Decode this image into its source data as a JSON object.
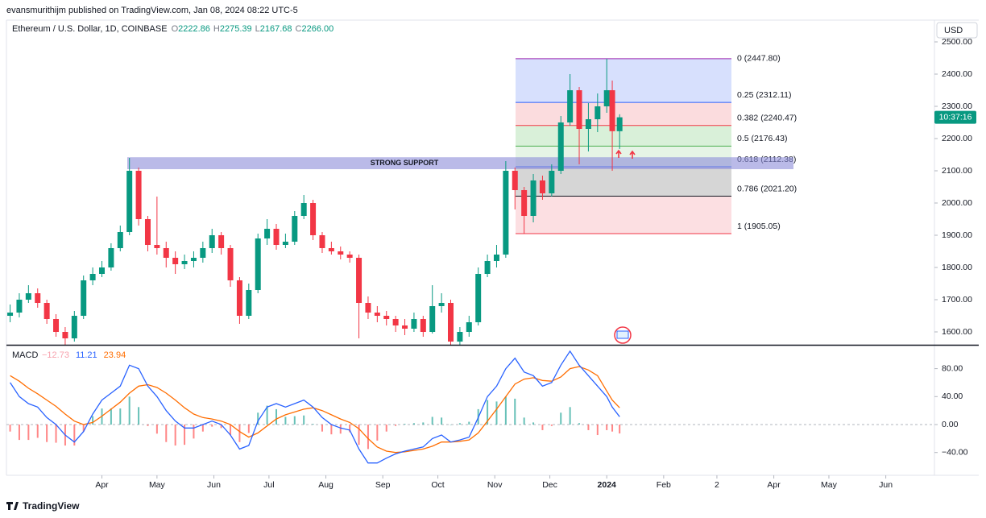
{
  "header": {
    "publisher": "evansmurithijm published on TradingView.com, Jan 08, 2024 08:22 UTC-5",
    "symbol": "Ethereum / U.S. Dollar, 1D, COINBASE",
    "ohlc": [
      {
        "key": "O",
        "value": "2222.86"
      },
      {
        "key": "H",
        "value": "2275.39"
      },
      {
        "key": "L",
        "value": "2167.68"
      },
      {
        "key": "C",
        "value": "2266.00"
      }
    ],
    "currency": "USD",
    "countdown": "10:37:16",
    "footer": "TradingView"
  },
  "chart_data": [
    {
      "type": "candlestick",
      "up_color": "#089981",
      "down_color": "#f23645",
      "xlim": [
        -52,
        453.5
      ],
      "ylim": [
        1560,
        2567.5
      ],
      "xticks": [
        {
          "value": 0,
          "label": "Apr"
        },
        {
          "value": 30,
          "label": "May"
        },
        {
          "value": 61,
          "label": "Jun"
        },
        {
          "value": 91,
          "label": "Jul"
        },
        {
          "value": 122,
          "label": "Aug"
        },
        {
          "value": 153,
          "label": "Sep"
        },
        {
          "value": 183,
          "label": "Oct"
        },
        {
          "value": 214,
          "label": "Nov"
        },
        {
          "value": 244,
          "label": "Dec"
        },
        {
          "value": 275,
          "label": "2024"
        },
        {
          "value": 306,
          "label": "Feb"
        },
        {
          "value": 335,
          "label": "2"
        },
        {
          "value": 366,
          "label": "Apr"
        },
        {
          "value": 396,
          "label": "May"
        },
        {
          "value": 427,
          "label": "Jun"
        }
      ],
      "yticks": [
        {
          "value": 1600,
          "label": "1600.00"
        },
        {
          "value": 1700,
          "label": "1700.00"
        },
        {
          "value": 1800,
          "label": "1800.00"
        },
        {
          "value": 1900,
          "label": "1900.00"
        },
        {
          "value": 2000,
          "label": "2000.00"
        },
        {
          "value": 2100,
          "label": "2100.00"
        },
        {
          "value": 2200,
          "label": "2200.00"
        },
        {
          "value": 2300,
          "label": "2300.00"
        },
        {
          "value": 2400,
          "label": "2400.00"
        },
        {
          "value": 2500,
          "label": "2500.00"
        }
      ],
      "x": [
        -50,
        -45,
        -40,
        -35,
        -30,
        -25,
        -20,
        -15,
        -10,
        -5,
        0,
        5,
        10,
        15,
        20,
        25,
        30,
        35,
        40,
        45,
        50,
        55,
        60,
        65,
        70,
        75,
        80,
        85,
        90,
        95,
        100,
        105,
        110,
        115,
        120,
        125,
        130,
        135,
        140,
        145,
        150,
        155,
        160,
        165,
        170,
        175,
        180,
        185,
        190,
        195,
        200,
        205,
        210,
        215,
        220,
        225,
        230,
        235,
        240,
        245,
        250,
        255,
        260,
        265,
        270,
        275,
        278,
        282
      ],
      "open": [
        1650,
        1660,
        1700,
        1720,
        1690,
        1640,
        1600,
        1580,
        1650,
        1760,
        1780,
        1800,
        1860,
        1910,
        2100,
        1950,
        1870,
        1860,
        1830,
        1810,
        1820,
        1830,
        1860,
        1900,
        1860,
        1760,
        1650,
        1730,
        1890,
        1920,
        1870,
        1880,
        1960,
        2000,
        1900,
        1860,
        1850,
        1840,
        1830,
        1690,
        1660,
        1650,
        1640,
        1620,
        1610,
        1640,
        1600,
        1680,
        1690,
        1570,
        1600,
        1630,
        1780,
        1820,
        1840,
        2100,
        2040,
        1960,
        2070,
        2030,
        2100,
        2250,
        2350,
        2230,
        2260,
        2300,
        2350,
        2222.86
      ],
      "high": [
        1685,
        1720,
        1745,
        1735,
        1700,
        1655,
        1615,
        1665,
        1775,
        1800,
        1820,
        1875,
        1930,
        2140,
        2110,
        1960,
        2020,
        1880,
        1850,
        1840,
        1850,
        1880,
        1920,
        1910,
        1870,
        1770,
        1750,
        1905,
        1950,
        1935,
        1905,
        1975,
        2025,
        2010,
        1910,
        1880,
        1865,
        1850,
        1840,
        1710,
        1680,
        1665,
        1650,
        1640,
        1660,
        1650,
        1745,
        1720,
        1700,
        1615,
        1650,
        1800,
        1840,
        1870,
        2130,
        2110,
        2050,
        2090,
        2085,
        2120,
        2270,
        2400,
        2360,
        2310,
        2340,
        2447.8,
        2380,
        2275.39
      ],
      "low": [
        1630,
        1645,
        1690,
        1675,
        1625,
        1585,
        1560,
        1570,
        1640,
        1745,
        1770,
        1790,
        1850,
        1900,
        1930,
        1850,
        1840,
        1800,
        1780,
        1795,
        1800,
        1815,
        1845,
        1840,
        1740,
        1625,
        1640,
        1720,
        1870,
        1855,
        1860,
        1870,
        1950,
        1885,
        1845,
        1840,
        1825,
        1815,
        1580,
        1640,
        1630,
        1620,
        1600,
        1590,
        1600,
        1585,
        1595,
        1660,
        1560,
        1560,
        1585,
        1620,
        1770,
        1800,
        1830,
        1980,
        1905,
        1940,
        2010,
        2020,
        2090,
        2240,
        2120,
        2160,
        2220,
        2280,
        2100,
        2167.68
      ],
      "close": [
        1660,
        1700,
        1720,
        1690,
        1640,
        1600,
        1580,
        1650,
        1760,
        1780,
        1800,
        1860,
        1910,
        2100,
        1950,
        1870,
        1860,
        1830,
        1810,
        1820,
        1830,
        1860,
        1900,
        1860,
        1760,
        1650,
        1730,
        1890,
        1920,
        1870,
        1880,
        1960,
        2000,
        1900,
        1860,
        1850,
        1840,
        1830,
        1690,
        1660,
        1650,
        1640,
        1620,
        1610,
        1640,
        1600,
        1680,
        1690,
        1570,
        1600,
        1630,
        1780,
        1820,
        1840,
        2100,
        2040,
        1960,
        2070,
        2030,
        2100,
        2250,
        2350,
        2230,
        2260,
        2300,
        2350,
        2222.86,
        2266
      ],
      "support": {
        "label": "STRONG SUPPORT",
        "low": 2105,
        "high": 2142,
        "color": "#8c8cd8"
      },
      "fib": [
        {
          "label": "0 (2447.80)",
          "value": 2447.8,
          "color": "#9c27b0",
          "fill": "#d7e0fd"
        },
        {
          "label": "0.25 (2312.11)",
          "value": 2312.11,
          "color": "#2962ff",
          "fill": "#fbdcde"
        },
        {
          "label": "0.382 (2240.47)",
          "value": 2240.47,
          "color": "#f23645",
          "fill": "#d9f0d9"
        },
        {
          "label": "0.5 (2176.43)",
          "value": 2176.43,
          "color": "#4caf50",
          "fill": "#e6f4e6"
        },
        {
          "label": "0.618 (2112.38)",
          "value": 2112.38,
          "color": "#2962ff",
          "fill": "#d6d6d6"
        },
        {
          "label": "0.786 (2021.20)",
          "value": 2021.2,
          "color": "#131722",
          "fill": "#fcdfe2"
        },
        {
          "label": "1 (1905.05)",
          "value": 1905.05,
          "color": "#f23645"
        }
      ]
    },
    {
      "type": "macd",
      "title": "MACD",
      "ylim": [
        -72.6,
        111.8
      ],
      "yticks": [
        {
          "value": 80,
          "label": "80.00"
        },
        {
          "value": 40,
          "label": "40.00"
        },
        {
          "value": 0,
          "label": "0.00"
        },
        {
          "value": -40,
          "label": "−40.00"
        }
      ],
      "legend": [
        {
          "text": "−12.73",
          "color": "#f7a1ad"
        },
        {
          "text": "11.21",
          "color": "#2962ff"
        },
        {
          "text": "23.94",
          "color": "#ff6d00"
        }
      ],
      "histogram": {
        "up_color": "#26a69a",
        "down_color": "#ff5252",
        "values": [
          -10,
          -22,
          -22,
          -19,
          -25,
          -26,
          -30,
          -30,
          -10,
          12,
          23,
          23,
          23,
          40,
          25,
          -2,
          -13,
          -25,
          -30,
          -29,
          -20,
          -10,
          -3,
          -5,
          -15,
          -25,
          -12,
          17,
          27,
          22,
          11,
          12,
          13,
          1,
          -10,
          -14,
          -13,
          -11,
          -29,
          -35,
          -23,
          -10,
          -2,
          1,
          2,
          3,
          11,
          10,
          0,
          2,
          4,
          22,
          35,
          33,
          40,
          37,
          10,
          3,
          -8,
          -2,
          17,
          25,
          2,
          -8,
          -15,
          -8,
          -10,
          -12.73
        ]
      },
      "macd": {
        "color": "#2962ff",
        "values": [
          60,
          40,
          30,
          25,
          10,
          0,
          -15,
          -25,
          -10,
          15,
          35,
          45,
          55,
          85,
          80,
          55,
          40,
          20,
          5,
          -5,
          -5,
          0,
          5,
          0,
          -15,
          -35,
          -30,
          5,
          25,
          30,
          25,
          30,
          35,
          25,
          10,
          0,
          -5,
          -8,
          -35,
          -55,
          -55,
          -48,
          -42,
          -38,
          -35,
          -32,
          -20,
          -15,
          -25,
          -22,
          -18,
          10,
          40,
          55,
          80,
          95,
          75,
          70,
          55,
          60,
          85,
          105,
          85,
          70,
          55,
          40,
          25,
          11.21
        ]
      },
      "signal": {
        "color": "#ff6d00",
        "values": [
          70,
          62,
          52,
          44,
          35,
          26,
          15,
          5,
          0,
          3,
          12,
          22,
          32,
          45,
          55,
          57,
          53,
          45,
          35,
          24,
          15,
          10,
          8,
          5,
          0,
          -10,
          -18,
          -12,
          -2,
          8,
          14,
          18,
          22,
          24,
          20,
          14,
          8,
          3,
          -6,
          -20,
          -32,
          -38,
          -40,
          -39,
          -37,
          -35,
          -31,
          -25,
          -25,
          -24,
          -22,
          -12,
          5,
          22,
          40,
          58,
          65,
          67,
          63,
          62,
          68,
          80,
          83,
          78,
          70,
          48,
          35,
          23.94
        ]
      }
    }
  ]
}
